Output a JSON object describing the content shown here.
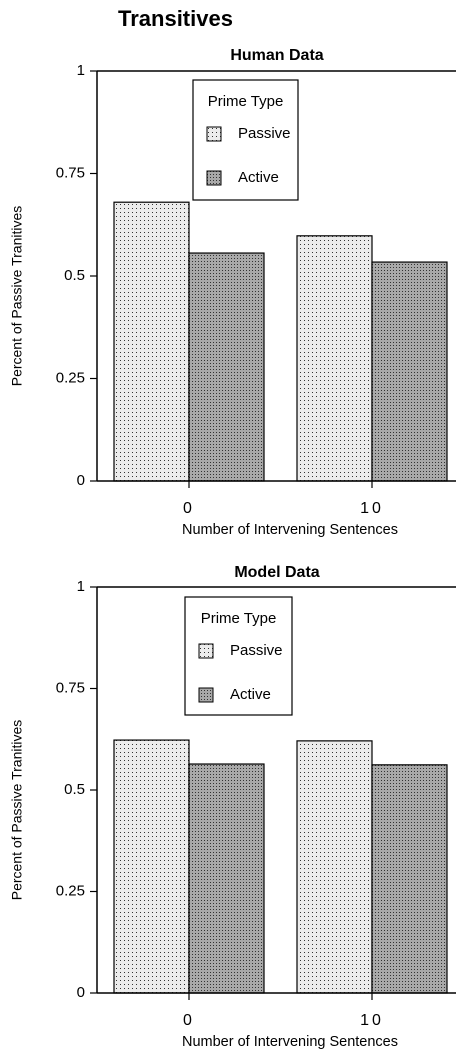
{
  "title": "Transitives",
  "chart_data": [
    {
      "type": "bar",
      "title": "Human Data",
      "y_label": "Percent of Passive Tranitives",
      "x_label": "Number of Intervening Sentences",
      "categories": [
        "0",
        "10"
      ],
      "legend_title": "Prime Type",
      "series": [
        {
          "name": "Passive",
          "color": "#ececec",
          "values": [
            0.68,
            0.598
          ]
        },
        {
          "name": "Active",
          "color": "#a9a9a9",
          "values": [
            0.556,
            0.534
          ]
        }
      ],
      "ylim": [
        0,
        1
      ],
      "yticks": [
        0,
        0.25,
        0.5,
        0.75,
        1
      ],
      "grid": false,
      "legend": "top"
    },
    {
      "type": "bar",
      "title": "Model Data",
      "y_label": "Percent of Passive Tranitives",
      "x_label": "Number of Intervening Sentences",
      "categories": [
        "0",
        "10"
      ],
      "legend_title": "Prime Type",
      "series": [
        {
          "name": "Passive",
          "color": "#ececec",
          "values": [
            0.623,
            0.621
          ]
        },
        {
          "name": "Active",
          "color": "#a9a9a9",
          "values": [
            0.564,
            0.562
          ]
        }
      ],
      "ylim": [
        0,
        1
      ],
      "yticks": [
        0,
        0.25,
        0.5,
        0.75,
        1
      ],
      "grid": false,
      "legend": "top"
    }
  ]
}
